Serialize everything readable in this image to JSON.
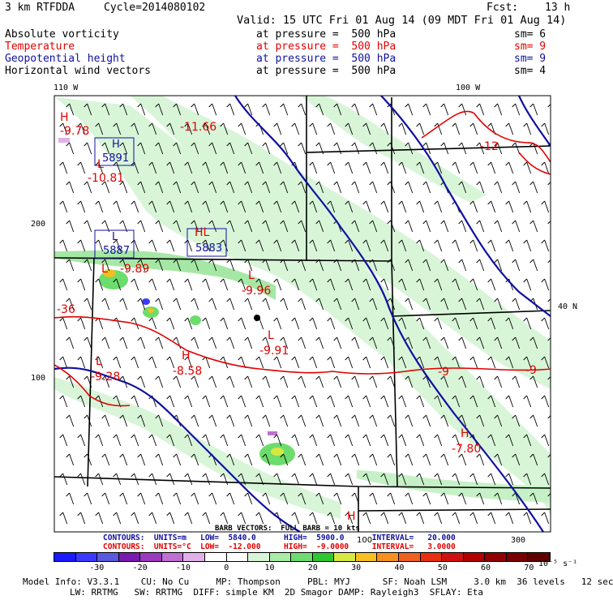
{
  "header": {
    "model_label": "3 km RTFDDA",
    "cycle_label": "Cycle=2014080102",
    "fcst_label": "Fcst:",
    "fcst_value": "13 h",
    "valid_label": "Valid: 15 UTC Fri 01 Aug 14 (09 MDT Fri 01 Aug 14)"
  },
  "fields": [
    {
      "name": "Absolute vorticity",
      "level": "at pressure =  500 hPa",
      "sm": "sm= 6",
      "color": "#000000"
    },
    {
      "name": "Temperature",
      "level": "at pressure =  500 hPa",
      "sm": "sm= 9",
      "color": "#e00000"
    },
    {
      "name": "Geopotential height",
      "level": "at pressure =  500 hPa",
      "sm": "sm= 9",
      "color": "#1010a0"
    },
    {
      "name": "Horizontal wind vectors",
      "level": "at pressure =  500 hPa",
      "sm": "sm= 4",
      "color": "#000000"
    }
  ],
  "axes": {
    "lon_110": "110 W",
    "lon_100": "100 W",
    "lat_40": "40 N",
    "y_200": "200",
    "y_100": "100",
    "x_300": "300",
    "x_100": "100"
  },
  "map_labels": {
    "h_minus_978": {
      "marker": "H",
      "value": "-9.78"
    },
    "temp_1166": "-11.66",
    "h_5891": {
      "marker": "H",
      "value": "5891"
    },
    "l_1081": {
      "marker": "L",
      "value": "-10.81"
    },
    "l_5887": {
      "marker": "L",
      "value": "5887"
    },
    "hl_5883": {
      "marker": "HL",
      "value": "5883"
    },
    "l_989": {
      "marker": "L",
      "value": "-9.89"
    },
    "l_996": {
      "marker": "L",
      "value": "-9.96"
    },
    "left_36": "-36",
    "l_991": {
      "marker": "L",
      "value": "-9.91"
    },
    "h_858": {
      "marker": "H",
      "value": "-8.58"
    },
    "l_928": {
      "marker": "L",
      "value": "-9.28"
    },
    "temp_12": "-12",
    "temp_9a": "-9",
    "temp_9b": "-9",
    "h_780": {
      "marker": "H",
      "value": "-7.80"
    },
    "h_bottom": "H"
  },
  "contour_info": {
    "barb_line": "BARB VECTORS:  FULL BARB = 10 kts",
    "blue_line": "CONTOURS:  UNITS=m   LOW=  5840.0      HIGH=  5900.0      INTERVAL=   20.000",
    "red_line": "CONTOURS:  UNITS=°C  LOW=  -12.000     HIGH=  -9.0000     INTERVAL=   3.0000"
  },
  "colorbar": {
    "labels": [
      "-30",
      "-20",
      "-10",
      "0",
      "10",
      "20",
      "30",
      "40",
      "50",
      "60",
      "70"
    ],
    "units": "10⁻⁵ s⁻¹",
    "colors": [
      "#1a1aff",
      "#3a3aff",
      "#5a5ae0",
      "#7a1ab0",
      "#9a3ac0",
      "#c070d0",
      "#e0b0e8",
      "#ffffff",
      "#ffffff",
      "#d8f5d8",
      "#a8eca8",
      "#70dc70",
      "#30c830",
      "#d8e840",
      "#f8c020",
      "#f89020",
      "#f06020",
      "#e83010",
      "#d01010",
      "#b00000",
      "#900000",
      "#780000",
      "#600000"
    ]
  },
  "footer": {
    "line1": "Model Info: V3.3.1    CU: No Cu     MP: Thompson     PBL: MYJ      SF: Noah LSM     3.0 km  36 levels   12 sec",
    "line2": "LW: RRTMG   SW: RRTMG  DIFF: simple KM  2D Smagor DAMP: Rayleigh3  SFLAY: Eta"
  }
}
